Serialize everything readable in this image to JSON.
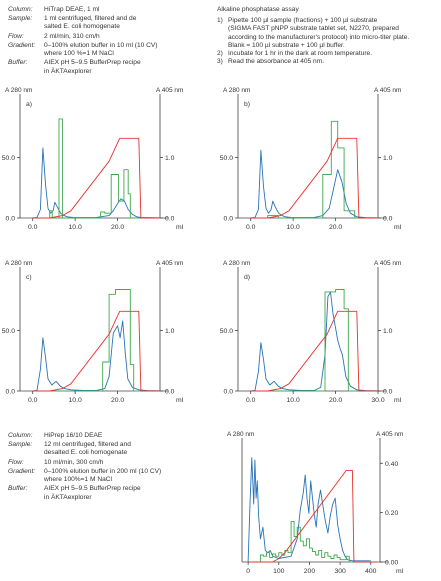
{
  "colors": {
    "blue": "#2a73b9",
    "green": "#3fa84f",
    "red": "#e5322d",
    "axis": "#444444"
  },
  "run_info_top": [
    {
      "label": "Column:",
      "value": "HiTrap DEAE, 1 ml"
    },
    {
      "label": "Sample:",
      "value": "1 ml centrifuged, filtered and de\nsalted E. coli homogenate"
    },
    {
      "label": "Flow:",
      "value": "2 ml/min, 310 cm/h"
    },
    {
      "label": "Gradient:",
      "value": "0–100% elution buffer in 10 ml (10 CV)\nwhere 100 %=1 M NaCl"
    },
    {
      "label": "Buffer:",
      "value": "AIEX pH 5–9.5 BufferPrep recipe\nin ÄKTAexplorer"
    }
  ],
  "run_info_bottom": [
    {
      "label": "Column:",
      "value": "HiPrep 16/10 DEAE"
    },
    {
      "label": "Sample:",
      "value": "12 ml centrifuged, filtered and\ndesalted E. coli homogenate"
    },
    {
      "label": "Flow:",
      "value": "10 ml/min, 300 cm/h"
    },
    {
      "label": "Gradient:",
      "value": "0–100% elution buffer in 200 ml (10 CV)\nwhere 100%=1 M NaCl"
    },
    {
      "label": "Buffer:",
      "value": "AIEX pH 5–9.5 BufferPrep recipe\nin ÄKTAexplorer"
    }
  ],
  "assay": {
    "heading": "Alkaline phosphatase assay",
    "steps": [
      {
        "num": "1)",
        "text": "Pipette 100 µl sample (fractions) + 100 µl substrate\n(SIGMA FAST pNPP substrate tablet set, N2270, prepared\naccording to the manufacturer's protocol) into micro-titer plate.\nBlank = 100 µl substrate + 100 µl buffer."
      },
      {
        "num": "2)",
        "text": "Incubate for 1 hr in the dark at room temperature."
      },
      {
        "num": "3)",
        "text": "Read the absorbance at 405 nm."
      }
    ]
  },
  "chart_data": [
    {
      "type": "line",
      "panel": "a)",
      "ylabel": "A 280 nm",
      "y2label": "A 405 nm",
      "xlabel": "ml",
      "xlim": [
        -3,
        30
      ],
      "ylim": [
        0,
        96
      ],
      "y2lim": [
        0,
        1.92
      ],
      "xticks": [
        0,
        10,
        20
      ],
      "xtick_labels": [
        "0.0",
        "10.0",
        "20.0"
      ],
      "yticks": [
        0,
        50
      ],
      "ytick_labels": [
        "0.0",
        "50.0"
      ],
      "y2ticks": [
        0,
        1
      ],
      "y2tick_labels": [
        "0.0",
        "1.0"
      ],
      "series": [
        {
          "axis": "y",
          "color": "blue",
          "x": [
            0,
            1,
            1.8,
            2.4,
            3,
            3.6,
            4.2,
            4.8,
            5.2,
            5.8,
            6.6,
            7.4,
            8.2,
            9.5,
            12,
            15,
            18,
            19,
            20,
            20.8,
            21.6,
            22.5,
            23.5,
            24.5,
            25.5,
            27,
            30
          ],
          "y": [
            0,
            0.5,
            7,
            58,
            28,
            8,
            4,
            6,
            13,
            9,
            4,
            2,
            1,
            0.5,
            0.3,
            0.5,
            2,
            6,
            12,
            16,
            14,
            7,
            3,
            1,
            0.5,
            0.3,
            0.2
          ]
        },
        {
          "axis": "y",
          "color": "green",
          "x": [
            0,
            4,
            4,
            4.6,
            4.6,
            6.2,
            6.2,
            7,
            7,
            16,
            16,
            17,
            17,
            18.5,
            18.5,
            20.2,
            20.2,
            21.5,
            21.5,
            22.5,
            22.5,
            23,
            23,
            30
          ],
          "y": [
            0,
            0,
            6,
            6,
            0,
            0,
            82,
            82,
            0,
            0,
            5,
            5,
            4,
            4,
            36,
            36,
            14,
            14,
            40,
            40,
            20,
            20,
            0,
            0
          ]
        },
        {
          "axis": "y",
          "color": "red",
          "x": [
            0,
            4,
            7,
            9,
            18,
            20.5,
            25,
            25.5,
            30
          ],
          "y": [
            0,
            0,
            2,
            6,
            47,
            66,
            66,
            0,
            0
          ]
        }
      ]
    },
    {
      "type": "line",
      "panel": "b)",
      "ylabel": "A 280 nm",
      "y2label": "A 405 nm",
      "xlabel": "ml",
      "xlim": [
        -3,
        30
      ],
      "ylim": [
        0,
        96
      ],
      "y2lim": [
        0,
        1.92
      ],
      "xticks": [
        0,
        10,
        20
      ],
      "xtick_labels": [
        "0.0",
        "10.0",
        "20.0"
      ],
      "yticks": [
        0,
        50
      ],
      "ytick_labels": [
        "0.0",
        "50.0"
      ],
      "y2ticks": [
        0,
        1
      ],
      "y2tick_labels": [
        "0.0",
        "1.0"
      ],
      "series": [
        {
          "axis": "y",
          "color": "blue",
          "x": [
            0,
            1,
            1.8,
            2.4,
            3,
            3.6,
            4.2,
            4.8,
            5.2,
            5.8,
            6.6,
            7.4,
            8.2,
            9.5,
            12,
            15,
            17,
            18.5,
            19.5,
            20.5,
            21.5,
            22.5,
            23.5,
            25,
            27,
            30
          ],
          "y": [
            0,
            0.5,
            7,
            56,
            26,
            8,
            4,
            7,
            14,
            9,
            4,
            2,
            1,
            0.5,
            0.3,
            0.5,
            2,
            8,
            24,
            40,
            30,
            12,
            4,
            1,
            0.3,
            0.2
          ]
        },
        {
          "axis": "y",
          "color": "green",
          "x": [
            0,
            4,
            4,
            6.5,
            6.5,
            7.2,
            7.2,
            17,
            17,
            19,
            19,
            20.5,
            20.5,
            22,
            22,
            24.5,
            24.5,
            30
          ],
          "y": [
            0,
            0,
            2,
            2,
            0,
            0,
            0,
            0,
            36,
            36,
            80,
            80,
            58,
            58,
            6,
            6,
            0,
            0
          ]
        },
        {
          "axis": "y",
          "color": "red",
          "x": [
            0,
            4,
            7,
            9,
            18,
            20.5,
            25,
            25.5,
            30
          ],
          "y": [
            0,
            0,
            2,
            6,
            47,
            66,
            66,
            0,
            0
          ]
        }
      ]
    },
    {
      "type": "line",
      "panel": "c)",
      "ylabel": "A 280 nm",
      "y2label": "A 405 nm",
      "xlabel": "ml",
      "xlim": [
        -3,
        30
      ],
      "ylim": [
        0,
        96
      ],
      "y2lim": [
        0,
        1.92
      ],
      "xticks": [
        0,
        10,
        20
      ],
      "xtick_labels": [
        "0.0",
        "10.0",
        "20.0"
      ],
      "yticks": [
        0,
        50
      ],
      "ytick_labels": [
        "0.0",
        "50.0"
      ],
      "y2ticks": [
        0,
        1
      ],
      "y2tick_labels": [
        "0.0",
        "1.0"
      ],
      "series": [
        {
          "axis": "y",
          "color": "blue",
          "x": [
            0,
            1,
            1.8,
            2.4,
            3,
            3.6,
            4.5,
            5.5,
            6.5,
            7.5,
            9,
            12,
            15,
            17,
            18,
            19,
            20,
            20.6,
            21.2,
            21.8,
            22.4,
            23.5,
            25,
            27,
            30
          ],
          "y": [
            0,
            0.5,
            18,
            44,
            28,
            10,
            5,
            8,
            4,
            2,
            1,
            0.5,
            0.5,
            2,
            12,
            48,
            54,
            44,
            58,
            32,
            10,
            3,
            1,
            0.3,
            0.2
          ]
        },
        {
          "axis": "y",
          "color": "green",
          "x": [
            0,
            16.5,
            16.5,
            18,
            18,
            19.5,
            19.5,
            23,
            23,
            23.8,
            23.8,
            30
          ],
          "y": [
            0,
            0,
            24,
            24,
            80,
            80,
            84,
            84,
            22,
            22,
            0,
            0
          ]
        },
        {
          "axis": "y",
          "color": "red",
          "x": [
            0,
            4,
            7,
            9,
            18,
            20.5,
            25,
            25.5,
            30
          ],
          "y": [
            0,
            0,
            2,
            6,
            47,
            66,
            66,
            0,
            0
          ]
        }
      ]
    },
    {
      "type": "line",
      "panel": "d)",
      "ylabel": "A 280 nm",
      "y2label": "A 405 nm",
      "xlabel": "ml",
      "xlim": [
        -3,
        30
      ],
      "ylim": [
        0,
        96
      ],
      "y2lim": [
        0,
        1.92
      ],
      "xticks": [
        0,
        10,
        20,
        30
      ],
      "xtick_labels": [
        "0.0",
        "10.0",
        "20.0",
        "30.0"
      ],
      "yticks": [
        0,
        50
      ],
      "ytick_labels": [
        "0.0",
        "50.0"
      ],
      "y2ticks": [
        0,
        1
      ],
      "y2tick_labels": [
        "0.0",
        "1.0"
      ],
      "series": [
        {
          "axis": "y",
          "color": "blue",
          "x": [
            0,
            1,
            1.8,
            2.4,
            3,
            3.6,
            4.5,
            5.5,
            6.5,
            7.5,
            9,
            12,
            15,
            16.5,
            17.5,
            18.2,
            18.8,
            19.4,
            20,
            20.5,
            21,
            21.6,
            22.4,
            23.5,
            25,
            27,
            30
          ],
          "y": [
            0,
            0.5,
            16,
            40,
            26,
            10,
            5,
            8,
            4,
            2,
            1,
            0.5,
            0.5,
            3,
            30,
            78,
            82,
            64,
            52,
            42,
            36,
            30,
            12,
            4,
            1,
            0.3,
            0.2
          ]
        },
        {
          "axis": "y",
          "color": "green",
          "x": [
            0,
            17.5,
            17.5,
            20,
            20,
            22,
            22,
            23,
            23,
            30
          ],
          "y": [
            0,
            0,
            82,
            82,
            84,
            84,
            68,
            68,
            0,
            0
          ]
        },
        {
          "axis": "y",
          "color": "red",
          "x": [
            0,
            4,
            7,
            9,
            18,
            20.5,
            25,
            25.5,
            30
          ],
          "y": [
            0,
            0,
            2,
            6,
            47,
            66,
            66,
            0,
            0
          ]
        }
      ]
    },
    {
      "type": "line",
      "panel": "",
      "ylabel": "A 280 nm",
      "y2label": "A 405 nm",
      "xlabel": "ml",
      "xlim": [
        -20,
        430
      ],
      "ylim": [
        0,
        1
      ],
      "y2lim": [
        0,
        0.47
      ],
      "xticks": [
        0,
        100,
        200,
        300,
        400
      ],
      "xtick_labels": [
        "0",
        "100",
        "200",
        "300",
        "400"
      ],
      "yticks": [],
      "ytick_labels": [],
      "y2ticks": [
        0,
        0.2,
        0.4
      ],
      "y2tick_labels": [
        "0.00",
        "0.20",
        "0.40"
      ],
      "series": [
        {
          "axis": "y",
          "color": "blue",
          "x": [
            0,
            6,
            12,
            18,
            22,
            26,
            30,
            34,
            40,
            48,
            56,
            64,
            72,
            80,
            100,
            140,
            160,
            170,
            180,
            186,
            192,
            198,
            204,
            210,
            216,
            222,
            228,
            236,
            244,
            252,
            260,
            268,
            276,
            284,
            292,
            300,
            308,
            316,
            324,
            340,
            360,
            400
          ],
          "y": [
            0,
            0.5,
            0.9,
            0.5,
            0.88,
            0.55,
            0.7,
            0.4,
            0.2,
            0.3,
            0.1,
            0.08,
            0.1,
            0.05,
            0.03,
            0.05,
            0.2,
            0.45,
            0.6,
            0.75,
            0.55,
            0.42,
            0.7,
            0.55,
            0.4,
            0.3,
            0.5,
            0.62,
            0.48,
            0.35,
            0.25,
            0.4,
            0.5,
            0.55,
            0.32,
            0.2,
            0.1,
            0.05,
            0.02,
            0.01,
            0.01,
            0.01
          ]
        },
        {
          "axis": "y",
          "color": "green",
          "x": [
            0,
            40,
            40,
            50,
            50,
            60,
            60,
            70,
            70,
            80,
            80,
            90,
            90,
            100,
            100,
            110,
            110,
            120,
            120,
            130,
            130,
            140,
            140,
            150,
            150,
            160,
            160,
            170,
            170,
            180,
            180,
            190,
            190,
            200,
            200,
            210,
            210,
            220,
            220,
            230,
            230,
            240,
            240,
            250,
            250,
            260,
            260,
            270,
            270,
            280,
            280,
            290,
            290,
            300,
            300,
            320,
            320,
            330,
            330,
            420
          ],
          "y": [
            0,
            0,
            0.06,
            0.06,
            0.05,
            0.05,
            0.08,
            0.08,
            0.04,
            0.04,
            0.07,
            0.07,
            0.05,
            0.05,
            0.08,
            0.08,
            0.06,
            0.06,
            0.1,
            0.1,
            0.08,
            0.08,
            0.35,
            0.35,
            0.22,
            0.22,
            0.3,
            0.3,
            0.18,
            0.18,
            0.14,
            0.14,
            0.2,
            0.2,
            0.12,
            0.12,
            0.09,
            0.09,
            0.06,
            0.06,
            0.1,
            0.1,
            0.04,
            0.04,
            0.08,
            0.08,
            0.05,
            0.05,
            0.03,
            0.03,
            0.06,
            0.06,
            0.04,
            0.04,
            0.02,
            0.02,
            0.05,
            0.05,
            0.0,
            0.0
          ]
        },
        {
          "axis": "y",
          "color": "red",
          "x": [
            0,
            80,
            100,
            120,
            320,
            340,
            345,
            420
          ],
          "y": [
            0,
            0,
            0.03,
            0.08,
            0.79,
            0.79,
            0,
            0
          ]
        }
      ]
    }
  ]
}
